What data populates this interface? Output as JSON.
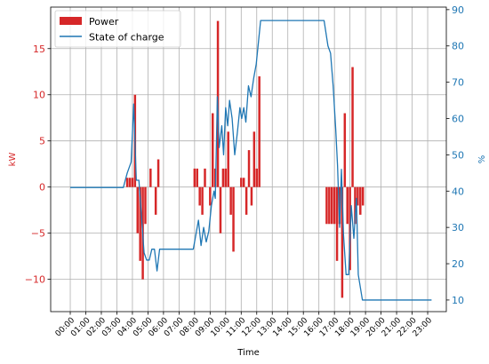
{
  "chart_data": {
    "type": "bar",
    "xlabel": "Time",
    "ylabel": "kW",
    "ylabel_right": "%",
    "ylim": [
      -13.5,
      19.5
    ],
    "ylim_right": [
      6.8,
      90.7
    ],
    "grid": true,
    "legend": "top-left",
    "x_ticks": [
      "00:00",
      "01:00",
      "02:00",
      "03:00",
      "04:00",
      "05:00",
      "06:00",
      "07:00",
      "08:00",
      "09:00",
      "10:00",
      "11:00",
      "12:00",
      "13:00",
      "14:00",
      "15:00",
      "16:00",
      "17:00",
      "18:00",
      "19:00",
      "20:00",
      "21:00",
      "22:00",
      "23:00"
    ],
    "y_ticks": [
      -10,
      -5,
      0,
      5,
      10,
      15
    ],
    "y_tick_labels": [
      "−10",
      "−5",
      "0",
      "5",
      "10",
      "15"
    ],
    "y_ticks_right": [
      10,
      20,
      30,
      40,
      50,
      60,
      70,
      80,
      90
    ],
    "y_tick_labels_right": [
      "10",
      "20",
      "30",
      "40",
      "50",
      "60",
      "70",
      "80",
      "90"
    ],
    "series": [
      {
        "name": "Power",
        "type": "bar",
        "axis": "left",
        "color": "#d62728",
        "x": [
          "03:40",
          "03:50",
          "04:00",
          "04:10",
          "04:20",
          "04:30",
          "04:40",
          "04:50",
          "05:10",
          "05:30",
          "05:40",
          "08:00",
          "08:10",
          "08:20",
          "08:30",
          "08:40",
          "09:00",
          "09:10",
          "09:20",
          "09:30",
          "09:40",
          "09:50",
          "10:00",
          "10:10",
          "10:20",
          "10:30",
          "11:00",
          "11:10",
          "11:20",
          "11:30",
          "11:40",
          "11:50",
          "12:00",
          "12:10",
          "16:30",
          "16:40",
          "16:50",
          "17:00",
          "17:10",
          "17:20",
          "17:30",
          "17:40",
          "17:50",
          "18:00",
          "18:10",
          "18:20",
          "18:30",
          "18:40",
          "18:50"
        ],
        "values": [
          1,
          1,
          1,
          10,
          -5,
          -8,
          -10,
          -4,
          2,
          -3,
          3,
          2,
          2,
          -2,
          -3,
          2,
          -2,
          8,
          2,
          18,
          -5,
          2,
          2,
          6,
          -3,
          -7,
          1,
          1,
          -3,
          4,
          -2,
          6,
          2,
          12,
          -4,
          -4,
          -4,
          -4,
          -8,
          -4,
          -12,
          8,
          -4,
          -9,
          13,
          -4,
          -2,
          -3,
          -2
        ]
      },
      {
        "name": "State of charge",
        "type": "line",
        "axis": "right",
        "color": "#1f77b4",
        "x": [
          "00:00",
          "03:25",
          "03:40",
          "03:55",
          "04:05",
          "04:15",
          "04:25",
          "04:45",
          "04:55",
          "05:05",
          "05:15",
          "05:25",
          "05:35",
          "05:45",
          "07:55",
          "08:05",
          "08:15",
          "08:25",
          "08:35",
          "08:45",
          "08:55",
          "09:05",
          "09:15",
          "09:20",
          "09:28",
          "09:35",
          "09:45",
          "09:52",
          "10:00",
          "10:08",
          "10:15",
          "10:25",
          "10:35",
          "10:45",
          "10:55",
          "11:02",
          "11:10",
          "11:18",
          "11:28",
          "11:38",
          "11:48",
          "11:58",
          "12:15",
          "16:20",
          "16:35",
          "16:45",
          "16:55",
          "17:05",
          "17:12",
          "17:20",
          "17:27",
          "17:35",
          "17:45",
          "17:55",
          "18:05",
          "18:15",
          "18:25",
          "18:32",
          "18:48",
          "23:15"
        ],
        "values": [
          41,
          41,
          45,
          48,
          64,
          43,
          43,
          23,
          21,
          21,
          24,
          24,
          18,
          24,
          24,
          28,
          32,
          25,
          30,
          26,
          29,
          36,
          40,
          38,
          66,
          52,
          58,
          50,
          63,
          58,
          65,
          60,
          50,
          56,
          63,
          60,
          63,
          59,
          69,
          66,
          71,
          75,
          87,
          87,
          80,
          78,
          69,
          57,
          47,
          30,
          46,
          28,
          17,
          17,
          36,
          27,
          38,
          17,
          10,
          10
        ]
      }
    ]
  }
}
